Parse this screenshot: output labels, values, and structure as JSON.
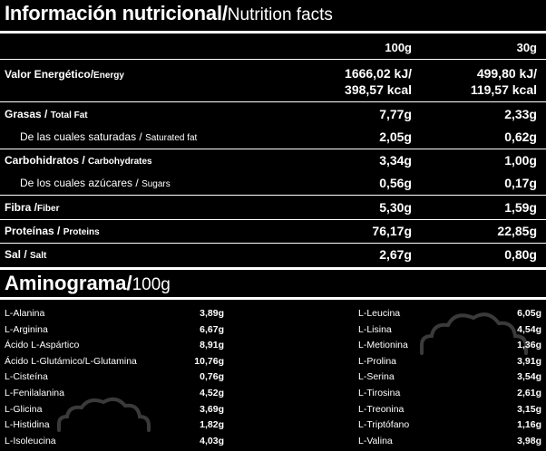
{
  "title": {
    "bold": "Información nutricional/",
    "sub": "Nutrition facts"
  },
  "columns": {
    "per100": "100g",
    "per30": "30g"
  },
  "nutrition": [
    {
      "es": "Valor Energético/",
      "en": "Energy",
      "v100": "1666,02 kJ/",
      "v100b": "398,57 kcal",
      "v30": "499,80 kJ/",
      "v30b": "119,57 kcal",
      "sub": false
    },
    {
      "es": "Grasas / ",
      "en": "Total Fat",
      "v100": "7,77g",
      "v30": "2,33g",
      "sub": false
    },
    {
      "es": "De las cuales saturadas / ",
      "en": "Saturated fat",
      "v100": "2,05g",
      "v30": "0,62g",
      "sub": true
    },
    {
      "es": "Carbohidratos / ",
      "en": "Carbohydrates",
      "v100": "3,34g",
      "v30": "1,00g",
      "sub": false
    },
    {
      "es": "De los cuales azúcares / ",
      "en": "Sugars",
      "v100": "0,56g",
      "v30": "0,17g",
      "sub": true
    },
    {
      "es": "Fibra /",
      "en": "Fiber",
      "v100": "5,30g",
      "v30": "1,59g",
      "sub": false
    },
    {
      "es": "Proteínas / ",
      "en": "Proteins",
      "v100": "76,17g",
      "v30": "22,85g",
      "sub": false
    },
    {
      "es": "Sal / ",
      "en": "Salt",
      "v100": "2,67g",
      "v30": "0,80g",
      "sub": false
    }
  ],
  "aminogram": {
    "title": "Aminograma/",
    "sub": "100g",
    "left": [
      {
        "name": "L-Alanina",
        "value": "3,89g"
      },
      {
        "name": "L-Arginina",
        "value": "6,67g"
      },
      {
        "name": "Ácido L-Aspártico",
        "value": "8,91g"
      },
      {
        "name": "Ácido L-Glutámico/L-Glutamina",
        "value": "10,76g"
      },
      {
        "name": "L-Cisteína",
        "value": "0,76g"
      },
      {
        "name": "L-Fenilalanina",
        "value": "4,52g"
      },
      {
        "name": "L-Glicina",
        "value": "3,69g"
      },
      {
        "name": "L-Histidina",
        "value": "1,82g"
      },
      {
        "name": "L-Isoleucina",
        "value": "4,03g"
      }
    ],
    "right": [
      {
        "name": "L-Leucina",
        "value": "6,05g"
      },
      {
        "name": "L-Lisina",
        "value": "4,54g"
      },
      {
        "name": "L-Metionina",
        "value": "1,36g"
      },
      {
        "name": "L-Prolina",
        "value": "3,91g"
      },
      {
        "name": "L-Serina",
        "value": "3,54g"
      },
      {
        "name": "L-Tirosina",
        "value": "2,61g"
      },
      {
        "name": "L-Treonina",
        "value": "3,15g"
      },
      {
        "name": "L-Triptófano",
        "value": "1,16g"
      },
      {
        "name": "L-Valina",
        "value": "3,98g"
      }
    ]
  }
}
